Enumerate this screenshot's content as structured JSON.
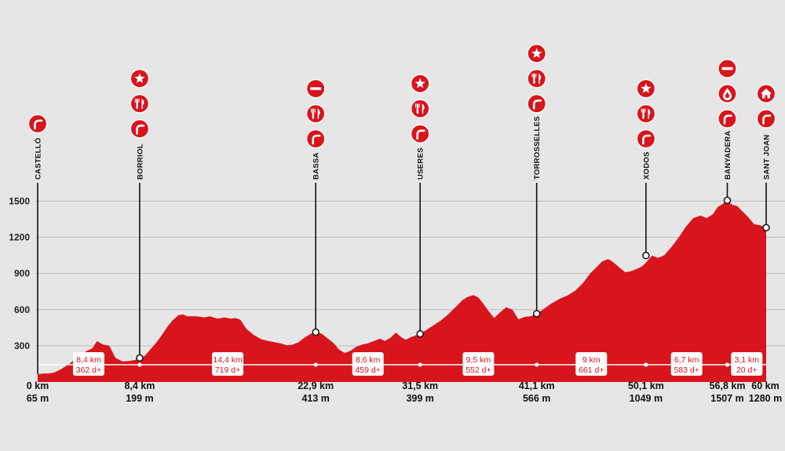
{
  "chart_data": {
    "type": "area",
    "title": "",
    "xlabel": "",
    "ylabel": "",
    "ylim": [
      0,
      1650
    ],
    "xlim": [
      0,
      60
    ],
    "yticks": [
      300,
      600,
      900,
      1200,
      1500
    ],
    "grid": true,
    "fill_color": "#d8141c",
    "background": "#e6e6e6",
    "profile": {
      "x": [
        0,
        0.4,
        0.9,
        1.4,
        2,
        2.6,
        3.2,
        3.9,
        4.5,
        4.9,
        5.1,
        5.4,
        5.9,
        6.4,
        7,
        7.6,
        8.1,
        8.4,
        8.8,
        9.2,
        9.8,
        10.3,
        10.7,
        11.1,
        11.6,
        12,
        12.3,
        12.6,
        13.1,
        13.7,
        14.2,
        14.8,
        15.4,
        15.9,
        16.3,
        16.7,
        17.2,
        17.8,
        18.4,
        19,
        19.5,
        20,
        20.5,
        21,
        21.5,
        22,
        22.5,
        22.9,
        23.4,
        23.9,
        24.4,
        24.8,
        25.3,
        25.8,
        26.2,
        26.7,
        27.2,
        27.7,
        28.2,
        28.6,
        29.1,
        29.5,
        29.9,
        30.3,
        30.7,
        31.1,
        31.5,
        32,
        32.6,
        33.2,
        33.8,
        34.4,
        35,
        35.4,
        35.9,
        36.3,
        36.7,
        37.2,
        37.6,
        38.1,
        38.6,
        39.1,
        39.6,
        40.1,
        40.6,
        41.1,
        41.6,
        42.3,
        43,
        43.7,
        44.3,
        44.9,
        45.5,
        46,
        46.5,
        47,
        47.4,
        47.9,
        48.4,
        48.9,
        49.4,
        49.8,
        50.1,
        50.6,
        51.1,
        51.6,
        52.2,
        52.8,
        53.4,
        54,
        54.6,
        55.1,
        55.6,
        56,
        56.4,
        56.8,
        57.2,
        57.6,
        58,
        58.5,
        59,
        59.5,
        60
      ],
      "y": [
        65,
        70,
        70,
        80,
        110,
        150,
        200,
        250,
        280,
        340,
        325,
        310,
        300,
        200,
        170,
        175,
        185,
        199,
        215,
        260,
        330,
        400,
        460,
        510,
        555,
        560,
        545,
        545,
        545,
        535,
        545,
        525,
        535,
        525,
        530,
        515,
        440,
        390,
        355,
        340,
        330,
        320,
        305,
        310,
        330,
        370,
        400,
        413,
        400,
        360,
        320,
        270,
        240,
        260,
        290,
        310,
        320,
        340,
        360,
        340,
        370,
        410,
        375,
        350,
        370,
        385,
        399,
        430,
        470,
        510,
        560,
        620,
        680,
        705,
        720,
        700,
        650,
        580,
        530,
        580,
        620,
        600,
        520,
        540,
        545,
        566,
        600,
        650,
        690,
        720,
        760,
        820,
        900,
        950,
        1000,
        1020,
        995,
        950,
        910,
        920,
        940,
        960,
        990,
        1049,
        1030,
        1050,
        1120,
        1200,
        1290,
        1360,
        1380,
        1360,
        1390,
        1450,
        1475,
        1507,
        1470,
        1460,
        1420,
        1370,
        1310,
        1300,
        1280
      ]
    },
    "stops": [
      {
        "name": "CASTELLÓ",
        "km_label": "0 km",
        "alt_label": "65 m",
        "km": 0,
        "alt": 65,
        "icons": [
          "climb-icon"
        ]
      },
      {
        "name": "BORRIOL",
        "km_label": "8,4 km",
        "alt_label": "199 m",
        "km": 8.4,
        "alt": 199,
        "icons": [
          "star-icon",
          "cutlery-icon",
          "climb-icon"
        ]
      },
      {
        "name": "BASSA",
        "km_label": "22,9 km",
        "alt_label": "413 m",
        "km": 22.9,
        "alt": 413,
        "icons": [
          "no-entry-icon",
          "cutlery-icon",
          "climb-icon"
        ]
      },
      {
        "name": "USERES",
        "km_label": "31,5 km",
        "alt_label": "399 m",
        "km": 31.5,
        "alt": 399,
        "icons": [
          "star-icon",
          "cutlery-icon",
          "climb-icon"
        ]
      },
      {
        "name": "TORROSSELLES",
        "km_label": "41,1 km",
        "alt_label": "566 m",
        "km": 41.1,
        "alt": 566,
        "icons": [
          "star-icon",
          "cutlery-icon",
          "climb-icon"
        ]
      },
      {
        "name": "XODOS",
        "km_label": "50,1 km",
        "alt_label": "1049 m",
        "km": 50.1,
        "alt": 1049,
        "icons": [
          "star-icon",
          "cutlery-icon",
          "climb-icon"
        ]
      },
      {
        "name": "BANYADERA",
        "km_label": "56,8 km",
        "alt_label": "1507 m",
        "km": 56.8,
        "alt": 1507,
        "icons": [
          "no-entry-icon",
          "water-drop-icon",
          "climb-icon"
        ]
      },
      {
        "name": "SANT JOAN",
        "km_label": "60 km",
        "alt_label": "1280 m",
        "km": 60,
        "alt": 1280,
        "icons": [
          "house-icon",
          "climb-icon"
        ]
      }
    ],
    "segments": [
      {
        "distance": "8,4 km",
        "gain": "362 d+"
      },
      {
        "distance": "14,4 km",
        "gain": "719 d+"
      },
      {
        "distance": "8,6 km",
        "gain": "459 d+"
      },
      {
        "distance": "9,5 km",
        "gain": "552 d+"
      },
      {
        "distance": "9 km",
        "gain": "661 d+"
      },
      {
        "distance": "6,7 km",
        "gain": "583 d+"
      },
      {
        "distance": "3,1 km",
        "gain": "20 d+"
      }
    ]
  }
}
